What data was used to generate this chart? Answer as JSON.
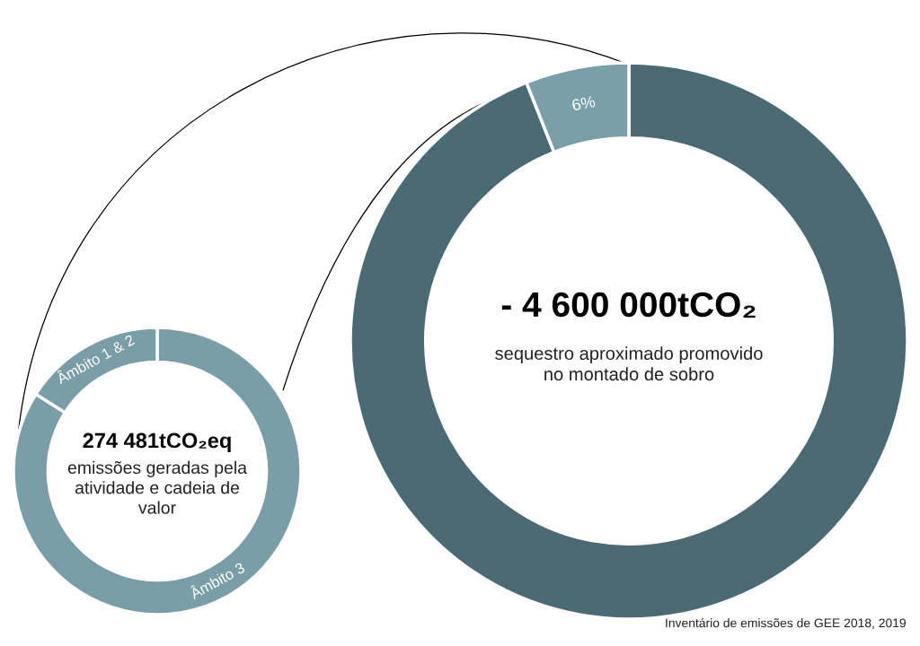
{
  "chart_data": [
    {
      "type": "donut",
      "title": "274 481tCO₂eq",
      "subtitle": "emissões geradas pela\natividade e cadeia de\nvalor",
      "categories": [
        "Âmbito 3",
        "Âmbito 1 & 2"
      ],
      "values": [
        84,
        16
      ],
      "colors": [
        "#7a9ea7",
        "#7a9ea7"
      ]
    },
    {
      "type": "donut",
      "title": "- 4 600 000tCO₂",
      "subtitle": "sequestro aproximado promovido\nno montado de sobro",
      "categories": [
        null,
        null
      ],
      "values": [
        94,
        6
      ],
      "value_labels": [
        null,
        "6%"
      ],
      "colors": [
        "#4a6b74",
        "#7a9fa8"
      ],
      "annotations": [
        "Inventário de emissões de GEE 2018, 2019"
      ]
    }
  ]
}
